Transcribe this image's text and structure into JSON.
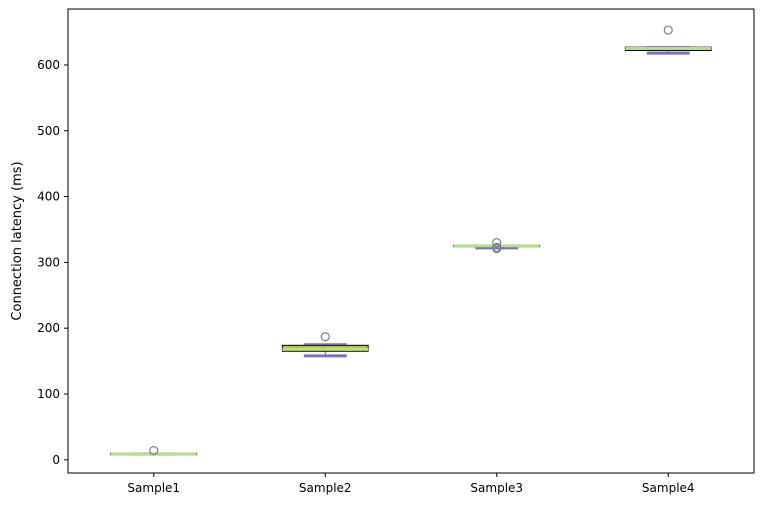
{
  "chart_data": {
    "type": "box",
    "title": "",
    "xlabel": "",
    "ylabel": "Connection latency (ms)",
    "ylim": [
      -20,
      685
    ],
    "yticks": [
      0,
      100,
      200,
      300,
      400,
      500,
      600
    ],
    "ytick_labels": [
      "0",
      "100",
      "200",
      "300",
      "400",
      "500",
      "600"
    ],
    "grid": false,
    "categories": [
      "Sample1",
      "Sample2",
      "Sample3",
      "Sample4"
    ],
    "boxes": [
      {
        "category": "Sample1",
        "whislo": 9,
        "q1": 9,
        "med": 9,
        "q3": 10,
        "whishi": 10,
        "fliers": [
          14
        ]
      },
      {
        "category": "Sample2",
        "whislo": 158,
        "q1": 165,
        "med": 168,
        "q3": 174,
        "whishi": 176,
        "fliers": [
          187
        ]
      },
      {
        "category": "Sample3",
        "whislo": 322,
        "q1": 324,
        "med": 325,
        "q3": 326,
        "whishi": 326,
        "fliers": [
          321,
          323,
          330
        ]
      },
      {
        "category": "Sample4",
        "whislo": 618,
        "q1": 622,
        "med": 625,
        "q3": 627,
        "whishi": 627,
        "fliers": [
          653
        ]
      }
    ],
    "colors": {
      "box_fill": "#c8b93c",
      "box_edge": "#000000",
      "median": "#b5e08a",
      "whisker": "#7b6fbf",
      "flier": "#808080",
      "axis": "#000000"
    }
  }
}
